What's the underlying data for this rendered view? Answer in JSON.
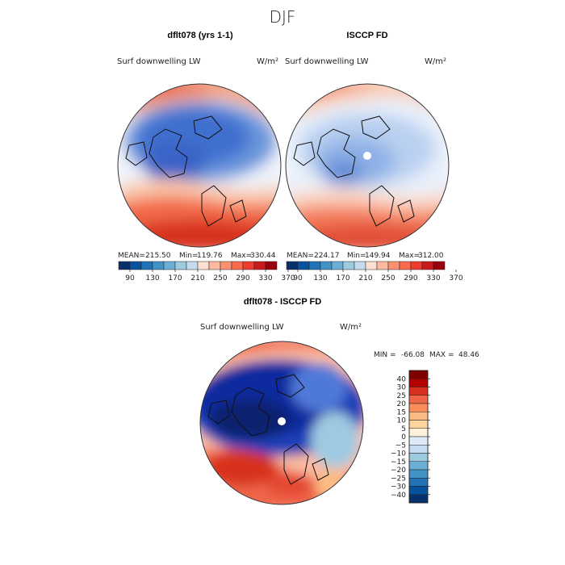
{
  "figure": {
    "season_title": "DJF"
  },
  "chart_data": [
    {
      "type": "heatmap",
      "title": "dflt078 (yrs 1-1)",
      "subtitle": "Surf downwelling LW",
      "units": "W/m²",
      "stats": {
        "mean_label": "MEAN=",
        "mean": "215.50",
        "min_label": "Min=",
        "min": "119.76",
        "max_label": "Max=",
        "max": "330.44"
      },
      "colorbar": {
        "ticks": [
          "90",
          "130",
          "170",
          "210",
          "250",
          "290",
          "330",
          "370"
        ],
        "colors": [
          "#08306b",
          "#08519c",
          "#2171b5",
          "#4292c6",
          "#6baed6",
          "#9ecae1",
          "#c6dbef",
          "#fee0d2",
          "#fcbba1",
          "#fc9272",
          "#fb6a4a",
          "#ef3b2c",
          "#cb181d",
          "#99000d"
        ]
      },
      "pole_missing": false
    },
    {
      "type": "heatmap",
      "title": "ISCCP FD",
      "subtitle": "Surf downwelling LW",
      "units": "W/m²",
      "stats": {
        "mean_label": "MEAN=",
        "mean": "224.17",
        "min_label": "Min=",
        "min": "149.94",
        "max_label": "Max=",
        "max": "312.00"
      },
      "colorbar": {
        "ticks": [
          "90",
          "130",
          "170",
          "210",
          "250",
          "290",
          "330",
          "370"
        ],
        "colors": [
          "#08306b",
          "#08519c",
          "#2171b5",
          "#4292c6",
          "#6baed6",
          "#9ecae1",
          "#c6dbef",
          "#fee0d2",
          "#fcbba1",
          "#fc9272",
          "#fb6a4a",
          "#ef3b2c",
          "#cb181d",
          "#99000d"
        ]
      },
      "pole_missing": true
    },
    {
      "type": "heatmap",
      "title": "dflt078 - ISCCP FD",
      "subtitle": "Surf downwelling LW",
      "units": "W/m²",
      "stats": {
        "min_label": "MIN =",
        "min": "-66.08",
        "max_label": "MAX =",
        "max": "48.46"
      },
      "colorbar": {
        "ticks": [
          "40",
          "30",
          "25",
          "20",
          "15",
          "10",
          "5",
          "0",
          "−5",
          "−10",
          "−15",
          "−20",
          "−25",
          "−30",
          "−40"
        ],
        "colors": [
          "#7f0000",
          "#b30000",
          "#d7301f",
          "#ef6548",
          "#fc8d59",
          "#fdbb84",
          "#fdd49e",
          "#fef0d9",
          "#deebf7",
          "#c6dbef",
          "#9ecae1",
          "#6baed6",
          "#4292c6",
          "#2171b5",
          "#08519c",
          "#08306b"
        ]
      },
      "pole_missing": true
    }
  ]
}
